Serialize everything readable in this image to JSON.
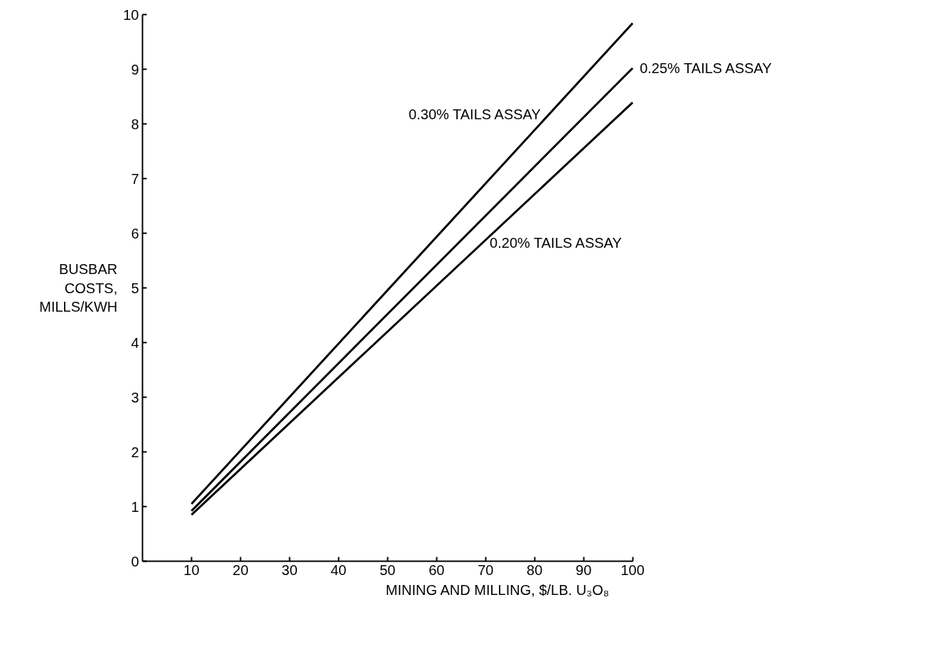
{
  "chart_data": {
    "type": "line",
    "xlabel": "MINING AND MILLING, $/LB. U₃O₈",
    "ylabel": "BUSBAR\nCOSTS,\nMILLS/KWH",
    "xlim": [
      0,
      100
    ],
    "ylim": [
      0,
      10
    ],
    "xticks": [
      10,
      20,
      30,
      40,
      50,
      60,
      70,
      80,
      90,
      100
    ],
    "yticks": [
      0,
      1,
      2,
      3,
      4,
      5,
      6,
      7,
      8,
      9,
      10
    ],
    "x": [
      10,
      100
    ],
    "grid": false,
    "legend": false,
    "marker": "none",
    "line_style": "solid",
    "series": [
      {
        "name": "0.30% TAILS ASSAY",
        "color": "#000000",
        "values": [
          1.05,
          9.84
        ]
      },
      {
        "name": "0.25% TAILS ASSAY",
        "color": "#000000",
        "values": [
          0.92,
          9.02
        ]
      },
      {
        "name": "0.20% TAILS ASSAY",
        "color": "#000000",
        "values": [
          0.85,
          8.39
        ]
      }
    ]
  }
}
